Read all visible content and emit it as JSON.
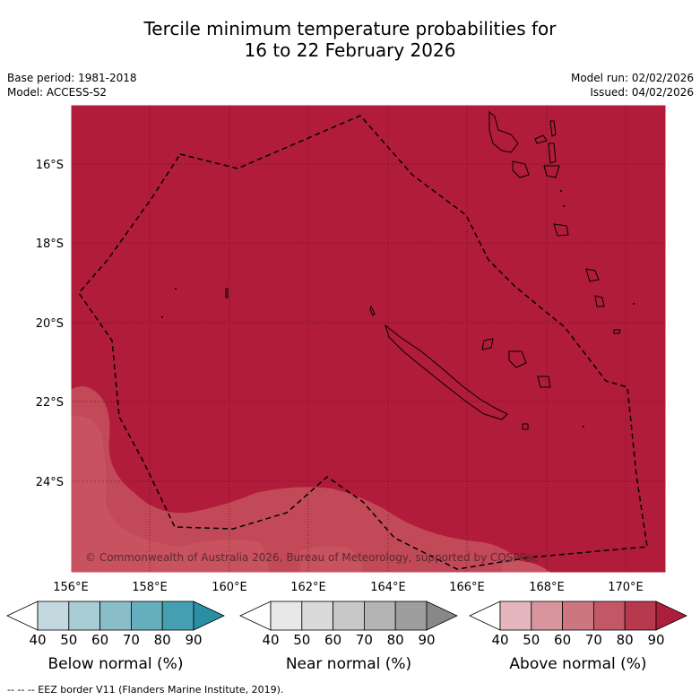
{
  "title": {
    "line1": "Tercile minimum temperature probabilities for",
    "line2": "16 to 22 February 2026"
  },
  "meta": {
    "base_period": "Base period: 1981-2018",
    "model": "Model: ACCESS-S2",
    "model_run": "Model run: 02/02/2026",
    "issued": "Issued: 04/02/2026"
  },
  "map": {
    "lat_labels": [
      "16°S",
      "18°S",
      "20°S",
      "22°S",
      "24°S"
    ],
    "lon_labels": [
      "156°E",
      "158°E",
      "160°E",
      "162°E",
      "164°E",
      "166°E",
      "168°E",
      "170°E"
    ],
    "copyright": "© Commonwealth of Australia 2026, Bureau of Meteorology, supported by COSPPac",
    "colors": {
      "dominant": "#b01c3a",
      "secondary": "#c24a58",
      "tertiary": "#c85260"
    }
  },
  "colorbars": [
    {
      "label": "Below normal (%)",
      "ticks": [
        "40",
        "50",
        "60",
        "70",
        "80",
        "90"
      ],
      "colors": [
        "#ffffff",
        "#c3d9df",
        "#a8ccd3",
        "#89bdc7",
        "#65aebd",
        "#44a0b1",
        "#2a8fa3"
      ]
    },
    {
      "label": "Near normal (%)",
      "ticks": [
        "40",
        "50",
        "60",
        "70",
        "80",
        "90"
      ],
      "colors": [
        "#ffffff",
        "#e8e8e8",
        "#dadada",
        "#c8c8c8",
        "#b4b4b4",
        "#9e9e9e",
        "#888888"
      ]
    },
    {
      "label": "Above normal (%)",
      "ticks": [
        "40",
        "50",
        "60",
        "70",
        "80",
        "90"
      ],
      "colors": [
        "#ffffff",
        "#e3b7bd",
        "#d8959d",
        "#cc7680",
        "#c25766",
        "#b8394d",
        "#ad1d3c"
      ]
    }
  ],
  "footnote": "-- -- -- EEZ border V11 (Flanders Marine Institute, 2019)."
}
